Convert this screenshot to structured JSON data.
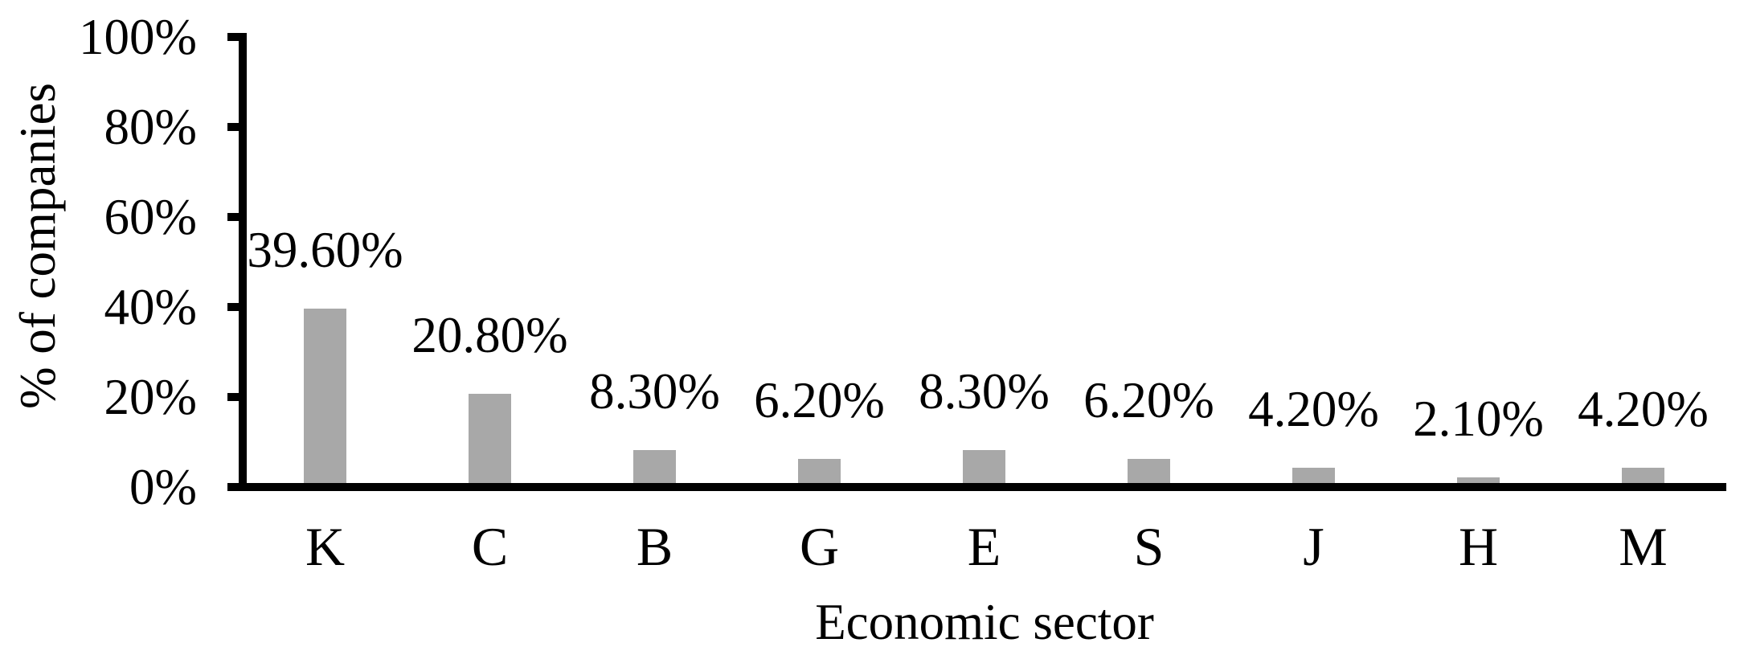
{
  "chart_data": {
    "type": "bar",
    "title": "",
    "xlabel": "Economic sector",
    "ylabel": "% of companies",
    "categories": [
      "K",
      "C",
      "B",
      "G",
      "E",
      "S",
      "J",
      "H",
      "M"
    ],
    "values": [
      39.6,
      20.8,
      8.3,
      6.2,
      8.3,
      6.2,
      4.2,
      2.1,
      4.2
    ],
    "value_labels": [
      "39.60%",
      "20.80%",
      "8.30%",
      "6.20%",
      "8.30%",
      "6.20%",
      "4.20%",
      "2.10%",
      "4.20%"
    ],
    "ytick_values": [
      0,
      20,
      40,
      60,
      80,
      100
    ],
    "ytick_labels": [
      "0%",
      "20%",
      "40%",
      "60%",
      "80%",
      "100%"
    ],
    "ylim": [
      0,
      100
    ],
    "grid": false,
    "legend": false,
    "bar_color": "#a8a8a8",
    "axis_color": "#000000",
    "text_color": "#000000",
    "background_color": "#ffffff"
  }
}
